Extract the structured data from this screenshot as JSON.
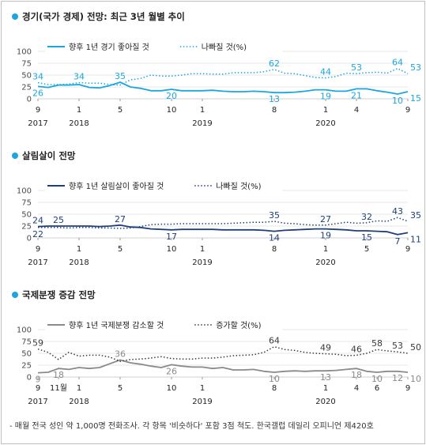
{
  "panels": [
    {
      "title": "경기(국가 경제) 전망: 최근 3년 월별 추이",
      "color_a": "#1aa6e0",
      "color_b": "#1aa6e0",
      "legend_a": "향후 1년 경기 좋아질 것",
      "legend_b": "나빠질 것(%)",
      "xticks": [
        {
          "i": 0,
          "m": "9"
        },
        {
          "i": 4,
          "m": "1"
        },
        {
          "i": 8,
          "m": "5"
        },
        {
          "i": 13,
          "m": "10"
        },
        {
          "i": 16,
          "m": "1"
        },
        {
          "i": 23,
          "m": "8"
        },
        {
          "i": 28,
          "m": "1"
        },
        {
          "i": 31,
          "m": "4"
        },
        {
          "i": 36,
          "m": "9"
        }
      ],
      "years": [
        {
          "i": 0,
          "y": "2017"
        },
        {
          "i": 4,
          "y": "2018"
        },
        {
          "i": 16,
          "y": "2019"
        },
        {
          "i": 28,
          "y": "2020"
        }
      ]
    },
    {
      "title": "살림살이 전망",
      "color_a": "#1f3e7a",
      "color_b": "#1f3e7a",
      "legend_a": "향후 1년 살림살이 좋아질 것",
      "legend_b": "나빠질 것(%)",
      "xticks": [
        {
          "i": 0,
          "m": "9"
        },
        {
          "i": 4,
          "m": "1"
        },
        {
          "i": 8,
          "m": "5"
        },
        {
          "i": 13,
          "m": "10"
        },
        {
          "i": 16,
          "m": "1"
        },
        {
          "i": 23,
          "m": "8"
        },
        {
          "i": 28,
          "m": "1"
        },
        {
          "i": 32,
          "m": "5"
        },
        {
          "i": 36,
          "m": "9"
        }
      ],
      "years": [
        {
          "i": 0,
          "y": "2017"
        },
        {
          "i": 4,
          "y": "2018"
        },
        {
          "i": 16,
          "y": "2019"
        },
        {
          "i": 28,
          "y": "2020"
        }
      ]
    },
    {
      "title": "국제분쟁 증감 전망",
      "color_a": "#8a8a8a",
      "color_b": "#3a3a3a",
      "legend_a": "향후 1년 국제분쟁 감소할 것",
      "legend_b": "증가할 것(%)",
      "xticks": [
        {
          "i": 0,
          "m": "9"
        },
        {
          "i": 2,
          "m": "11월"
        },
        {
          "i": 4,
          "m": "1"
        },
        {
          "i": 8,
          "m": "5"
        },
        {
          "i": 13,
          "m": "10"
        },
        {
          "i": 16,
          "m": "1"
        },
        {
          "i": 23,
          "m": "8"
        },
        {
          "i": 28,
          "m": "1"
        },
        {
          "i": 31,
          "m": "4"
        },
        {
          "i": 33,
          "m": "6"
        },
        {
          "i": 36,
          "m": "9"
        }
      ],
      "years": [
        {
          "i": 0,
          "y": "2017"
        },
        {
          "i": 4,
          "y": "2018"
        },
        {
          "i": 16,
          "y": "2019"
        },
        {
          "i": 28,
          "y": "2020"
        }
      ]
    }
  ],
  "chart_data": [
    {
      "type": "line",
      "title": "경기(국가 경제) 전망: 최근 3년 월별 추이",
      "x": [
        "2017-09",
        "2017-10",
        "2017-11",
        "2017-12",
        "2018-01",
        "2018-02",
        "2018-03",
        "2018-04",
        "2018-05",
        "2018-06",
        "2018-07",
        "2018-08",
        "2018-09",
        "2018-10",
        "2018-11",
        "2018-12",
        "2019-01",
        "2019-02",
        "2019-03",
        "2019-04",
        "2019-05",
        "2019-06",
        "2019-07",
        "2019-08",
        "2019-09",
        "2019-10",
        "2019-11",
        "2019-12",
        "2020-01",
        "2020-02",
        "2020-03",
        "2020-04",
        "2020-05",
        "2020-06",
        "2020-07",
        "2020-08",
        "2020-09"
      ],
      "ylim": [
        0,
        100
      ],
      "yticks": [
        0,
        25,
        50,
        75,
        100
      ],
      "series": [
        {
          "name": "향후 1년 경기 좋아질 것",
          "style": "solid",
          "values": [
            26,
            24,
            29,
            29,
            30,
            24,
            23,
            28,
            35,
            25,
            22,
            17,
            17,
            20,
            17,
            17,
            17,
            18,
            16,
            15,
            15,
            16,
            15,
            13,
            13,
            14,
            16,
            19,
            19,
            16,
            16,
            21,
            21,
            17,
            14,
            10,
            15
          ],
          "labels": [
            {
              "i": 0,
              "v": 26
            },
            {
              "i": 8,
              "v": 35
            },
            {
              "i": 13,
              "v": 20
            },
            {
              "i": 23,
              "v": 13
            },
            {
              "i": 28,
              "v": 19
            },
            {
              "i": 31,
              "v": 21
            },
            {
              "i": 35,
              "v": 10
            },
            {
              "i": 36,
              "v": 15
            }
          ]
        },
        {
          "name": "나빠질 것(%)",
          "style": "dotted",
          "values": [
            34,
            30,
            30,
            31,
            34,
            33,
            33,
            30,
            29,
            40,
            43,
            50,
            48,
            48,
            50,
            53,
            53,
            52,
            52,
            55,
            55,
            55,
            57,
            62,
            54,
            53,
            49,
            45,
            44,
            47,
            54,
            53,
            55,
            56,
            54,
            64,
            53
          ],
          "labels": [
            {
              "i": 0,
              "v": 34
            },
            {
              "i": 4,
              "v": 34
            },
            {
              "i": 23,
              "v": 62
            },
            {
              "i": 28,
              "v": 44
            },
            {
              "i": 31,
              "v": 53
            },
            {
              "i": 35,
              "v": 64
            },
            {
              "i": 36,
              "v": 53
            }
          ]
        }
      ]
    },
    {
      "type": "line",
      "title": "살림살이 전망",
      "x": [
        "2017-09",
        "2017-10",
        "2017-11",
        "2017-12",
        "2018-01",
        "2018-02",
        "2018-03",
        "2018-04",
        "2018-05",
        "2018-06",
        "2018-07",
        "2018-08",
        "2018-09",
        "2018-10",
        "2018-11",
        "2018-12",
        "2019-01",
        "2019-02",
        "2019-03",
        "2019-04",
        "2019-05",
        "2019-06",
        "2019-07",
        "2019-08",
        "2019-09",
        "2019-10",
        "2019-11",
        "2019-12",
        "2020-01",
        "2020-02",
        "2020-03",
        "2020-04",
        "2020-05",
        "2020-06",
        "2020-07",
        "2020-08",
        "2020-09"
      ],
      "ylim": [
        0,
        100
      ],
      "yticks": [
        0,
        25,
        50,
        75,
        100
      ],
      "series": [
        {
          "name": "향후 1년 살림살이 좋아질 것",
          "style": "solid",
          "values": [
            24,
            25,
            25,
            25,
            25,
            25,
            24,
            25,
            27,
            23,
            22,
            19,
            18,
            17,
            18,
            18,
            18,
            18,
            17,
            17,
            17,
            17,
            16,
            14,
            16,
            17,
            18,
            19,
            19,
            18,
            17,
            15,
            15,
            14,
            13,
            7,
            11
          ],
          "labels": [
            {
              "i": 0,
              "v": 24
            },
            {
              "i": 2,
              "v": 25
            },
            {
              "i": 8,
              "v": 27
            },
            {
              "i": 13,
              "v": 17
            },
            {
              "i": 23,
              "v": 14
            },
            {
              "i": 28,
              "v": 19
            },
            {
              "i": 32,
              "v": 15
            },
            {
              "i": 35,
              "v": 7
            },
            {
              "i": 36,
              "v": 11
            }
          ]
        },
        {
          "name": "나빠질 것(%)",
          "style": "dotted",
          "values": [
            22,
            22,
            22,
            21,
            22,
            22,
            21,
            21,
            20,
            21,
            24,
            28,
            29,
            29,
            30,
            30,
            30,
            30,
            30,
            31,
            32,
            33,
            33,
            35,
            31,
            30,
            28,
            27,
            27,
            30,
            33,
            31,
            32,
            36,
            35,
            43,
            35
          ],
          "labels": [
            {
              "i": 0,
              "v": 22
            },
            {
              "i": 23,
              "v": 35
            },
            {
              "i": 28,
              "v": 27
            },
            {
              "i": 32,
              "v": 32
            },
            {
              "i": 35,
              "v": 43
            },
            {
              "i": 36,
              "v": 35
            }
          ]
        }
      ]
    },
    {
      "type": "line",
      "title": "국제분쟁 증감 전망",
      "x": [
        "2017-09",
        "2017-10",
        "2017-11",
        "2017-12",
        "2018-01",
        "2018-02",
        "2018-03",
        "2018-04",
        "2018-05",
        "2018-06",
        "2018-07",
        "2018-08",
        "2018-09",
        "2018-10",
        "2018-11",
        "2018-12",
        "2019-01",
        "2019-02",
        "2019-03",
        "2019-04",
        "2019-05",
        "2019-06",
        "2019-07",
        "2019-08",
        "2019-09",
        "2019-10",
        "2019-11",
        "2019-12",
        "2020-01",
        "2020-02",
        "2020-03",
        "2020-04",
        "2020-05",
        "2020-06",
        "2020-07",
        "2020-08",
        "2020-09"
      ],
      "ylim": [
        0,
        100
      ],
      "yticks": [
        0,
        25,
        50,
        75,
        100
      ],
      "series": [
        {
          "name": "향후 1년 국제분쟁 감소할 것",
          "style": "solid",
          "values": [
            9,
            10,
            18,
            16,
            20,
            18,
            20,
            28,
            36,
            30,
            27,
            23,
            20,
            26,
            23,
            21,
            21,
            18,
            20,
            15,
            15,
            16,
            12,
            10,
            12,
            13,
            12,
            13,
            13,
            14,
            16,
            18,
            12,
            10,
            12,
            12,
            10
          ],
          "labels": [
            {
              "i": 0,
              "v": 9
            },
            {
              "i": 2,
              "v": 18
            },
            {
              "i": 8,
              "v": 36
            },
            {
              "i": 13,
              "v": 26
            },
            {
              "i": 23,
              "v": 10
            },
            {
              "i": 28,
              "v": 13
            },
            {
              "i": 31,
              "v": 18
            },
            {
              "i": 33,
              "v": 10
            },
            {
              "i": 35,
              "v": 12
            },
            {
              "i": 36,
              "v": 10
            }
          ]
        },
        {
          "name": "증가할 것(%)",
          "style": "dotted",
          "values": [
            59,
            52,
            37,
            52,
            44,
            46,
            46,
            42,
            33,
            37,
            38,
            40,
            43,
            39,
            38,
            38,
            40,
            40,
            42,
            45,
            46,
            47,
            52,
            64,
            58,
            56,
            52,
            50,
            49,
            48,
            45,
            46,
            50,
            58,
            55,
            53,
            50
          ],
          "labels": [
            {
              "i": 0,
              "v": 59
            },
            {
              "i": 23,
              "v": 64
            },
            {
              "i": 28,
              "v": 49
            },
            {
              "i": 31,
              "v": 46
            },
            {
              "i": 33,
              "v": 58
            },
            {
              "i": 35,
              "v": 53
            },
            {
              "i": 36,
              "v": 50
            }
          ]
        }
      ]
    }
  ],
  "footer": "- 매월 전국 성인 약 1,000명 전화조사. 각 항목 '비슷하다' 포함 3점 척도. 한국갤럽 데일리 오피니언 제420호",
  "axis_text_color": "#4a4a4a",
  "grid_color": "#d0d0d0"
}
